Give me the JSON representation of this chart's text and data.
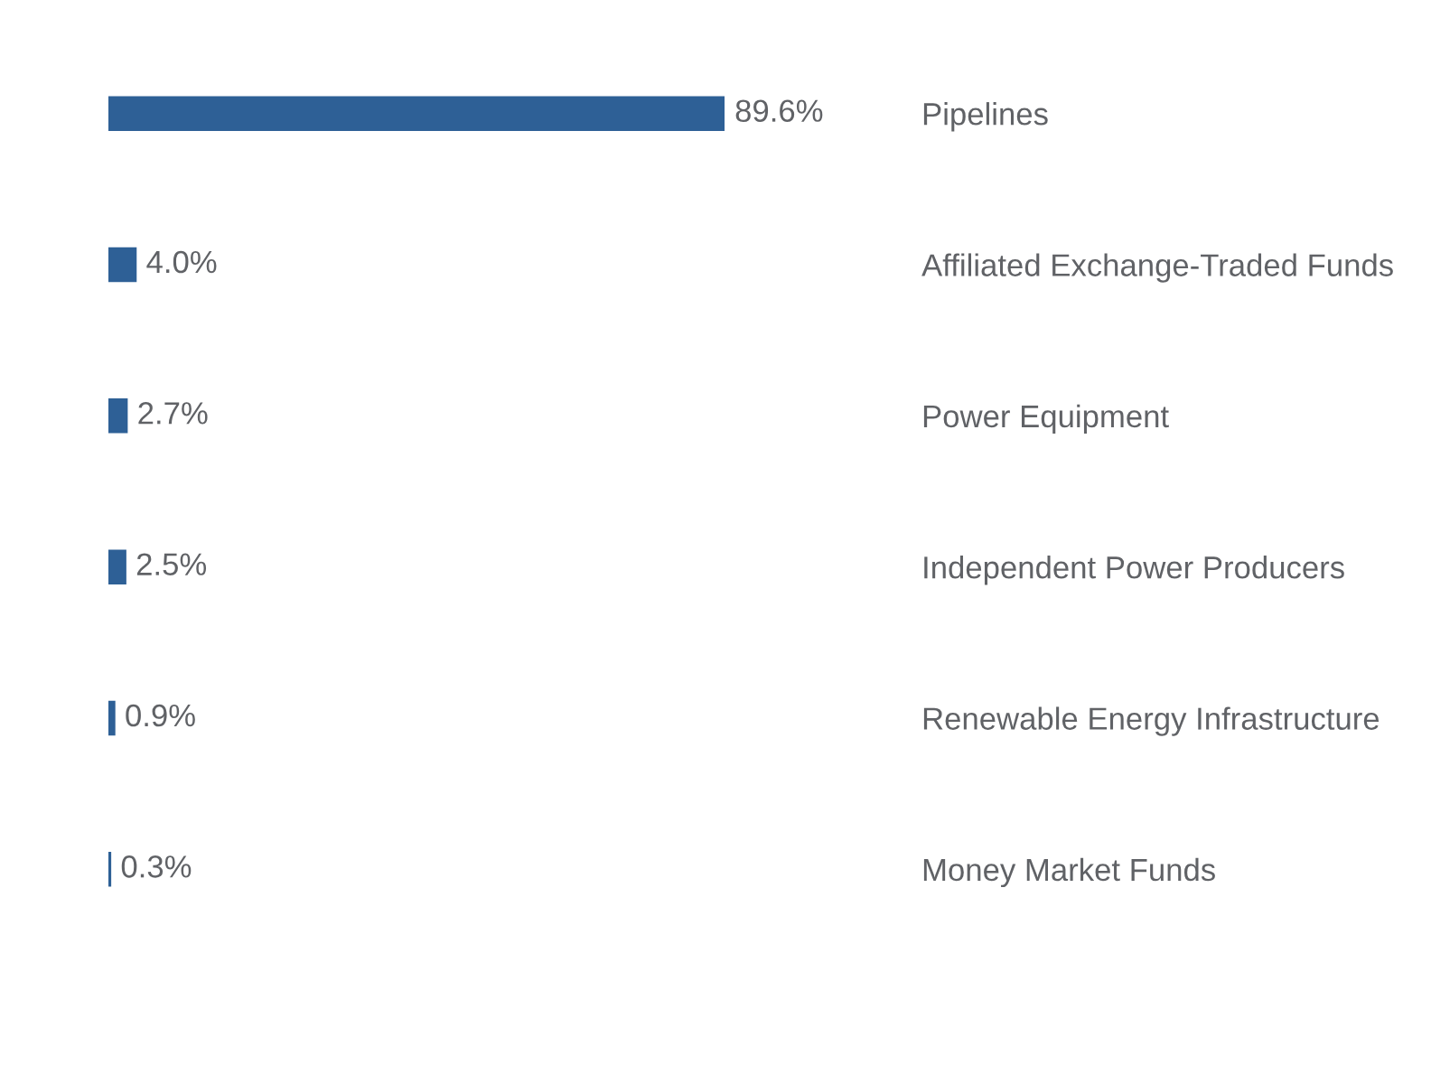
{
  "chart_data": {
    "type": "bar",
    "orientation": "horizontal",
    "color": "#2e6096",
    "categories": [
      "Pipelines",
      "Affiliated Exchange-Traded Funds",
      "Power Equipment",
      "Independent Power Producers",
      "Renewable Energy Infrastructure",
      "Money Market Funds"
    ],
    "values": [
      89.6,
      4.0,
      2.7,
      2.5,
      0.9,
      0.3
    ],
    "value_labels": [
      "89.6%",
      "4.0%",
      "2.7%",
      "2.5%",
      "0.9%",
      "0.3%"
    ],
    "tick_labels": "y"
  }
}
